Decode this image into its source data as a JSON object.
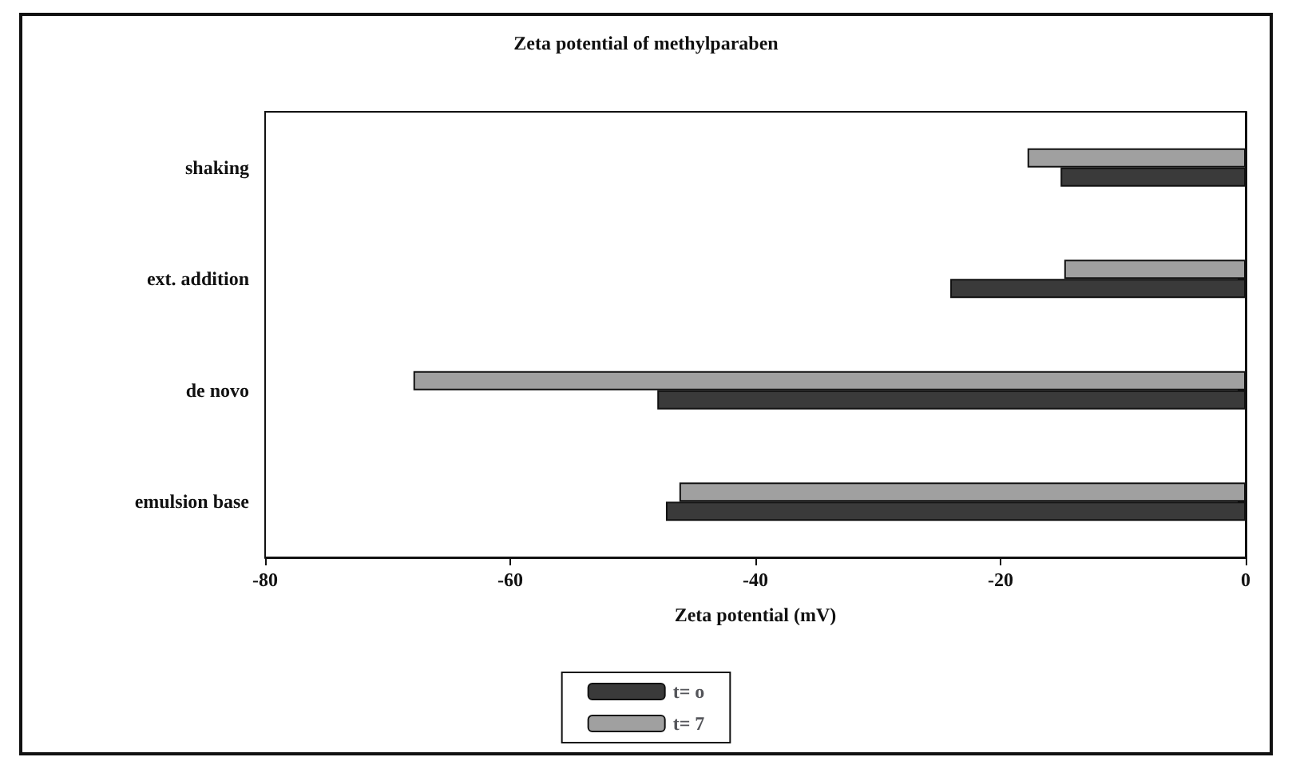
{
  "chart_data": {
    "type": "bar",
    "orientation": "horizontal",
    "title": "Zeta potential of methylparaben",
    "xlabel": "Zeta potential (mV)",
    "categories": [
      "shaking",
      "ext. addition",
      "de novo",
      "emulsion base"
    ],
    "series": [
      {
        "name": "t= o",
        "color": "#3a3a3a",
        "values": [
          -15.1,
          -24.1,
          -48.0,
          -47.3
        ]
      },
      {
        "name": "t= 7",
        "color": "#a0a0a0",
        "values": [
          -17.8,
          -14.8,
          -67.9,
          -46.2
        ]
      }
    ],
    "xlim": [
      -80,
      0
    ],
    "xticks": [
      -80,
      -60,
      -40,
      -20,
      0
    ],
    "grid": false,
    "legend": "bottom"
  }
}
